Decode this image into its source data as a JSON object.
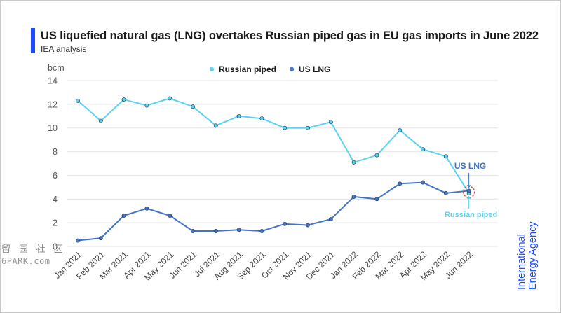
{
  "header": {
    "title": "US liquefied natural gas (LNG) overtakes Russian piped gas in EU gas imports in June 2022",
    "subtitle": "IEA analysis"
  },
  "brand": {
    "line1": "International",
    "line2": "Energy Agency"
  },
  "watermark": {
    "glyphs": "留 园 社 区",
    "site": "6PARK.com"
  },
  "colors": {
    "russian": "#5bd3f0",
    "us": "#4474c7",
    "accent": "#1f4bff",
    "grid": "#e4e4e4",
    "highlight": "#e0403a"
  },
  "chart_data": {
    "type": "line",
    "ylabel": "bcm",
    "ylim": [
      0,
      14
    ],
    "yticks": [
      0,
      2,
      4,
      6,
      8,
      10,
      12,
      14
    ],
    "grid": true,
    "legend_position": "top-center",
    "x": [
      "Jan 2021",
      "Feb 2021",
      "Mar 2021",
      "Apr 2021",
      "May 2021",
      "Jun 2021",
      "Jul 2021",
      "Aug 2021",
      "Sep 2021",
      "Oct 2021",
      "Nov 2021",
      "Dec 2021",
      "Jan 2022",
      "Feb 2022",
      "Mar 2022",
      "Apr 2022",
      "May 2022",
      "Jun 2022"
    ],
    "series": [
      {
        "name": "Russian piped",
        "values": [
          12.3,
          10.6,
          12.4,
          11.9,
          12.5,
          11.8,
          10.2,
          11.0,
          10.8,
          10.0,
          10.0,
          10.5,
          7.1,
          7.7,
          9.8,
          8.2,
          7.6,
          4.5
        ]
      },
      {
        "name": "US LNG",
        "values": [
          0.5,
          0.7,
          2.6,
          3.2,
          2.6,
          1.3,
          1.3,
          1.4,
          1.3,
          1.9,
          1.8,
          2.3,
          4.2,
          4.0,
          5.3,
          5.4,
          4.5,
          4.7
        ]
      }
    ],
    "annotations": [
      {
        "text": "US LNG",
        "series": "US LNG",
        "x": "Jun 2022"
      },
      {
        "text": "Russian piped",
        "series": "Russian piped",
        "x": "Jun 2022"
      }
    ]
  }
}
